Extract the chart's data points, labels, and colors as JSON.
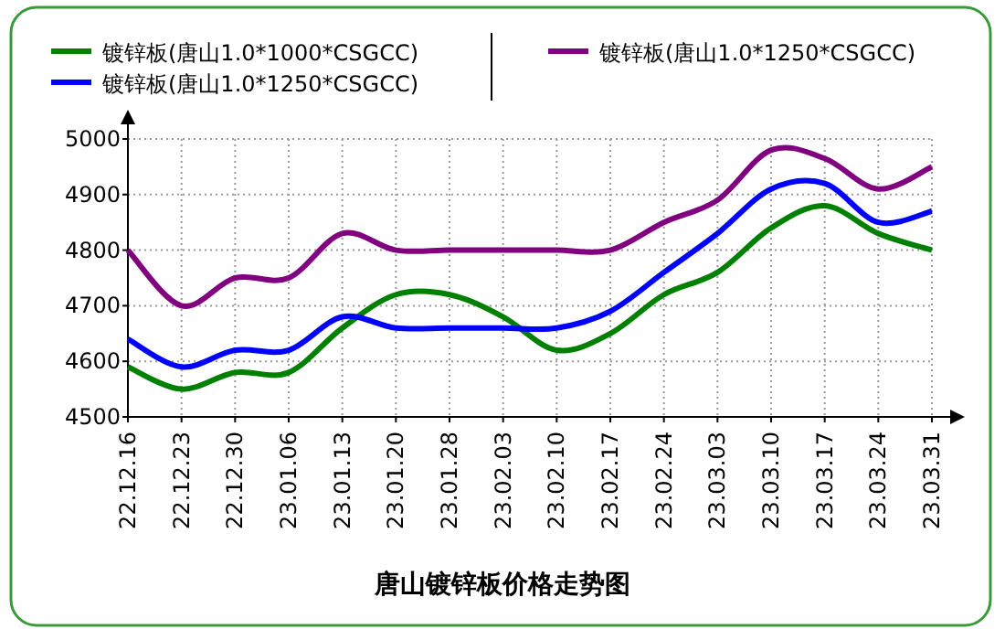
{
  "chart_data": {
    "type": "line",
    "title": "唐山镀锌板价格走势图",
    "categories": [
      "22.12.16",
      "22.12.23",
      "22.12.30",
      "23.01.06",
      "23.01.13",
      "23.01.20",
      "23.01.28",
      "23.02.03",
      "23.02.10",
      "23.02.17",
      "23.02.24",
      "23.03.03",
      "23.03.10",
      "23.03.17",
      "23.03.24",
      "23.03.31"
    ],
    "series": [
      {
        "name": "镀锌板(唐山1.0*1000*CSGCC)",
        "color": "#008000",
        "values": [
          4590,
          4550,
          4580,
          4580,
          4660,
          4720,
          4720,
          4680,
          4620,
          4650,
          4720,
          4760,
          4840,
          4880,
          4830,
          4800
        ]
      },
      {
        "name": "镀锌板(唐山1.0*1250*CSGCC)",
        "color": "#0000ff",
        "values": [
          4640,
          4590,
          4620,
          4620,
          4680,
          4660,
          4660,
          4660,
          4660,
          4690,
          4760,
          4830,
          4910,
          4920,
          4850,
          4870
        ]
      },
      {
        "name": "镀锌板(唐山1.0*1250*CSGCC)",
        "color": "#800080",
        "values": [
          4800,
          4700,
          4750,
          4750,
          4830,
          4800,
          4800,
          4800,
          4800,
          4800,
          4850,
          4890,
          4980,
          4965,
          4910,
          4950
        ]
      }
    ],
    "ylim": [
      4500,
      5000
    ],
    "yticks": [
      4500,
      4600,
      4700,
      4800,
      4900,
      5000
    ],
    "grid": true,
    "legend": "top"
  }
}
